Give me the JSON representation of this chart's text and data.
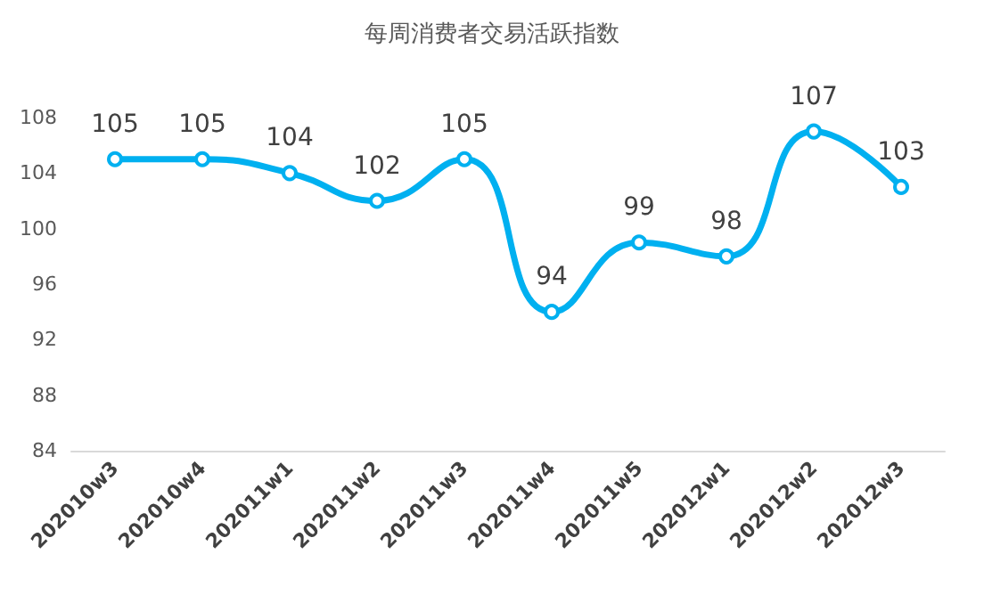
{
  "chart_data": {
    "type": "line",
    "title": "每周消费者交易活跃指数",
    "categories": [
      "202010w3",
      "202010w4",
      "202011w1",
      "202011w2",
      "202011w3",
      "202011w4",
      "202011w5",
      "202012w1",
      "202012w2",
      "202012w3"
    ],
    "series": [
      {
        "color": "#00b0f0",
        "values": [
          105,
          105,
          104,
          102,
          105,
          94,
          99,
          98,
          107,
          103
        ]
      }
    ],
    "ylim": [
      84,
      108
    ],
    "yticks": [
      84,
      88,
      92,
      96,
      100,
      104,
      108
    ],
    "grid": false,
    "marker": "circle",
    "line_style": "solid",
    "data_labels": true
  }
}
